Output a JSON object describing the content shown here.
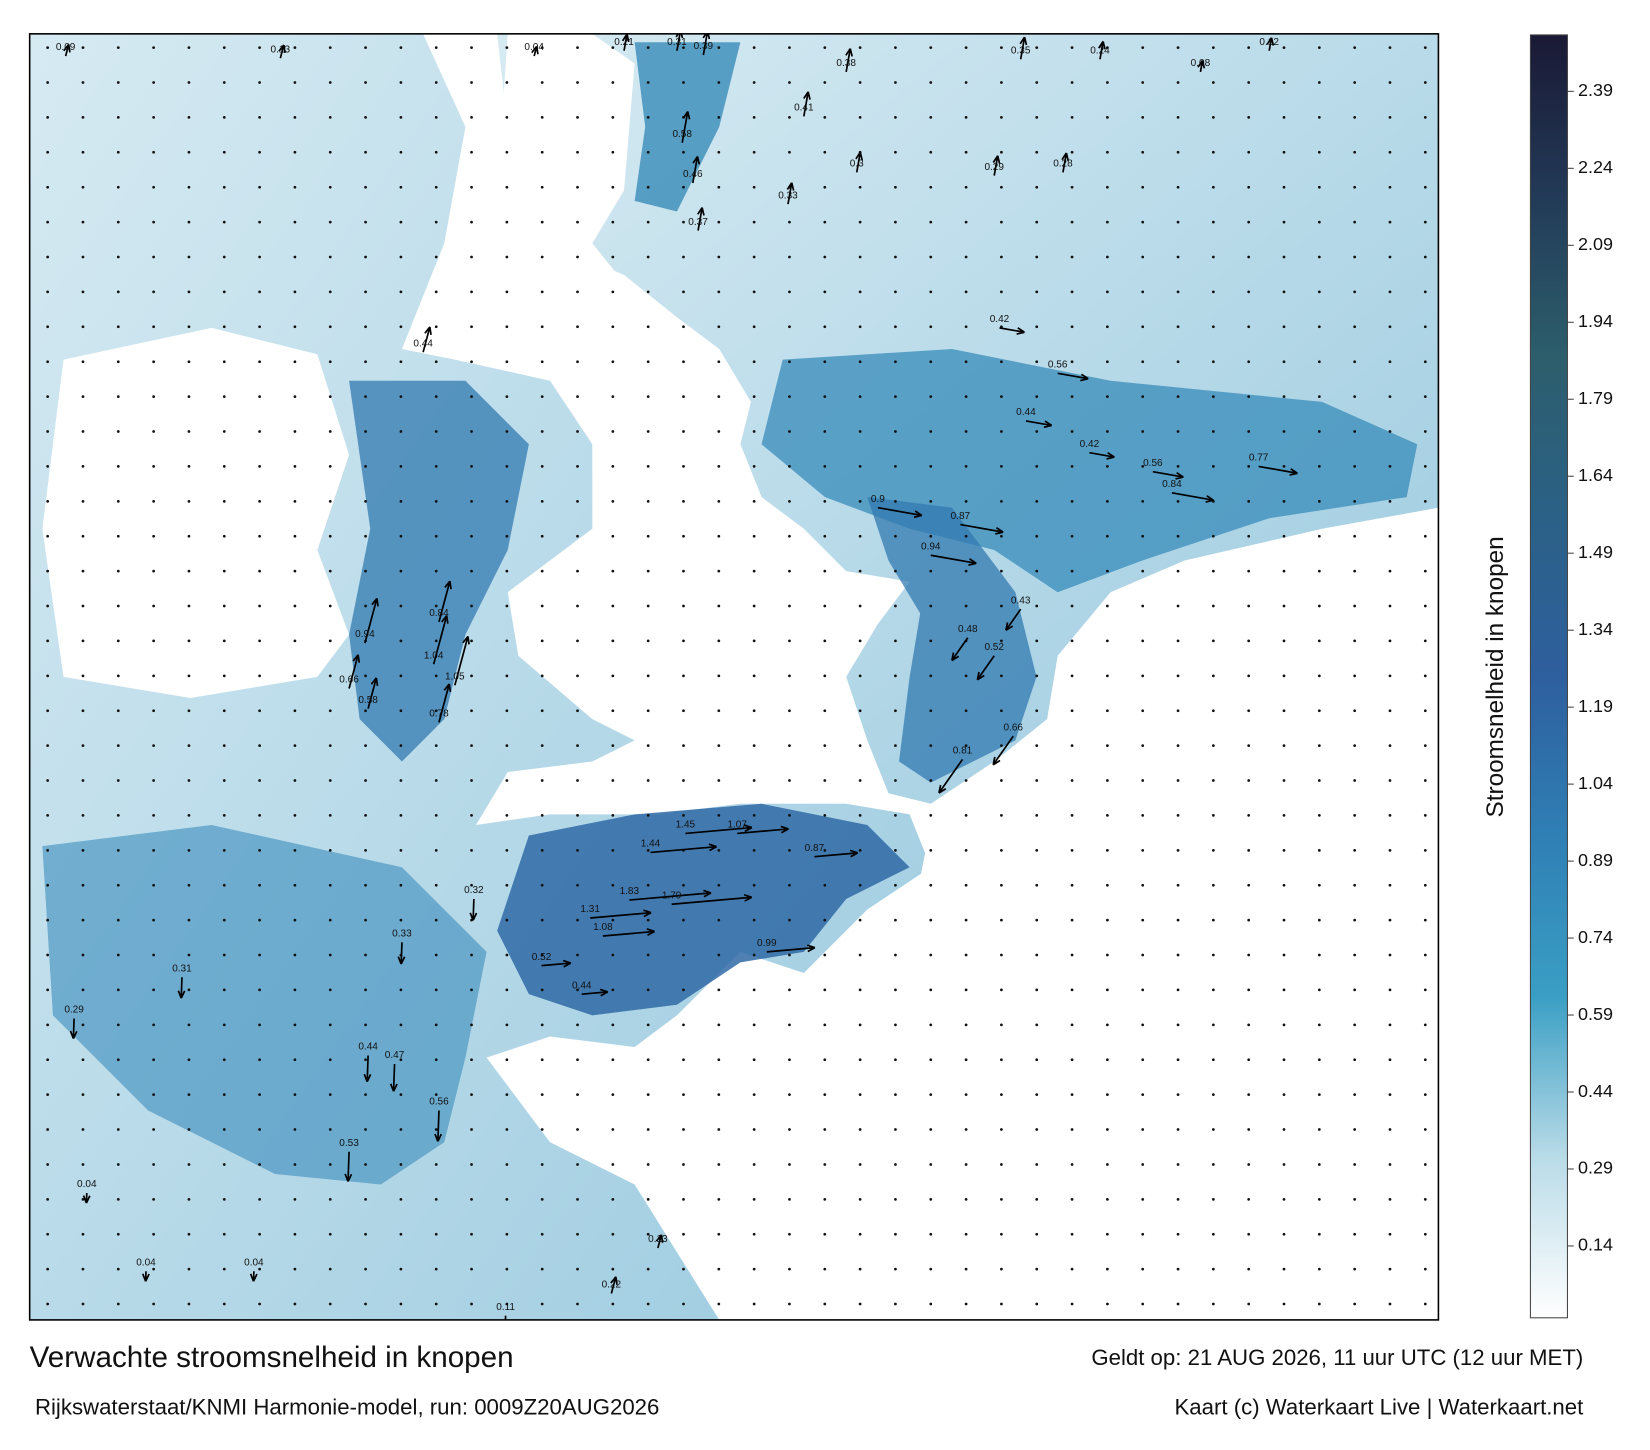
{
  "map": {
    "speed_labels": [
      0.09,
      0.13,
      0.04,
      0.21,
      0.31,
      0.39,
      0.35,
      0.24,
      0.12,
      0.08,
      0.38,
      0.41,
      0.46,
      0.58,
      0.37,
      0.33,
      0.3,
      0.29,
      0.28,
      0.42,
      0.56,
      0.44,
      0.42,
      0.56,
      0.77,
      0.84,
      0.87,
      0.94,
      0.9,
      0.43,
      0.48,
      0.52,
      0.66,
      0.81,
      1.45,
      1.44,
      1.07,
      0.87,
      1.83,
      1.79,
      1.31,
      1.08,
      0.99,
      0.52,
      0.44,
      0.84,
      1.04,
      1.05,
      0.94,
      0.78,
      0.66,
      0.58,
      0.44,
      0.32,
      0.33,
      0.56,
      0.44,
      0.47,
      0.53,
      0.31,
      0.29,
      0.04,
      0.04,
      0.04,
      0.11,
      0.22,
      0.13
    ]
  },
  "colorbar": {
    "label": "Stroomsnelheid in knopen",
    "range": [
      0,
      2.5
    ],
    "ticks": [
      0.14,
      0.29,
      0.44,
      0.59,
      0.74,
      0.89,
      1.04,
      1.19,
      1.34,
      1.49,
      1.64,
      1.79,
      1.94,
      2.09,
      2.24,
      2.39
    ],
    "colors": [
      "#ffffff",
      "#b9dbe8",
      "#3a9fc4",
      "#2f7fb5",
      "#2e5f9e",
      "#2b6186",
      "#2c5e6c",
      "#223a57",
      "#1a1935"
    ]
  },
  "footer": {
    "title": "Verwachte stroomsnelheid in knopen",
    "valid_time": "Geldt op: 21 AUG 2026, 11 uur UTC (12 uur MET)",
    "model": "Rijkswaterstaat/KNMI Harmonie-model, run: 0009Z20AUG2026",
    "credit": "Kaart (c) Waterkaart Live | Waterkaart.net"
  }
}
